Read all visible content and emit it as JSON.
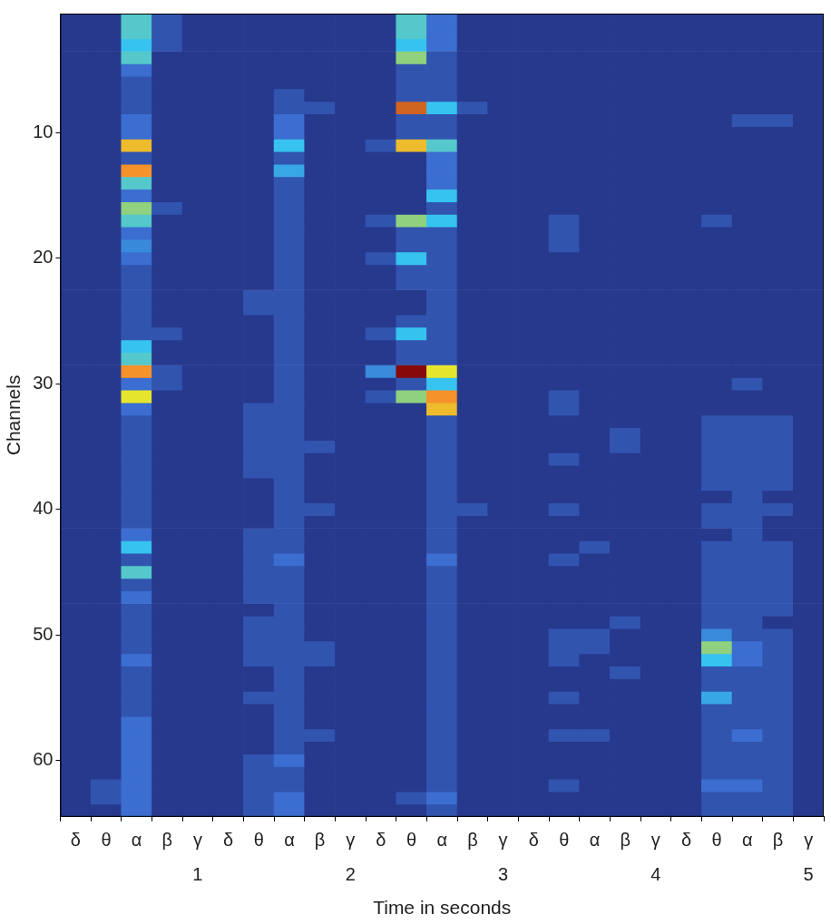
{
  "chart_data": {
    "type": "heatmap",
    "xlabel": "Time in seconds",
    "ylabel": "Channels",
    "categories": [
      "δ",
      "θ",
      "α",
      "β",
      "γ",
      "δ",
      "θ",
      "α",
      "β",
      "γ",
      "δ",
      "θ",
      "α",
      "β",
      "γ",
      "δ",
      "θ",
      "α",
      "β",
      "γ",
      "δ",
      "θ",
      "α",
      "β",
      "γ"
    ],
    "seconds": [
      null,
      null,
      null,
      null,
      1,
      null,
      null,
      null,
      null,
      2,
      null,
      null,
      null,
      null,
      3,
      null,
      null,
      null,
      null,
      4,
      null,
      null,
      null,
      null,
      5
    ],
    "ylim": [
      64.5,
      0.5
    ],
    "yticks": [
      10,
      20,
      30,
      40,
      50,
      60
    ],
    "grid": false,
    "clim": [
      0,
      10
    ],
    "cells": [
      [
        1,
        1,
        5,
        2,
        1,
        1,
        1,
        1,
        1,
        1,
        1,
        5,
        3,
        1,
        1,
        1,
        1,
        1,
        1,
        1,
        1,
        1,
        1,
        1,
        1
      ],
      [
        1,
        1,
        5,
        2,
        1,
        1,
        1,
        1,
        1,
        1,
        1,
        5,
        3,
        1,
        1,
        1,
        1,
        1,
        1,
        1,
        1,
        1,
        1,
        1,
        1
      ],
      [
        1,
        1,
        4.5,
        2,
        1,
        1,
        1,
        1,
        1,
        1,
        1,
        4.5,
        3,
        1,
        1,
        1,
        1,
        1,
        1,
        1,
        1,
        1,
        1,
        1,
        1
      ],
      [
        1,
        1,
        5,
        1,
        1,
        1,
        1,
        1,
        1,
        1,
        1,
        6,
        2,
        1,
        1,
        1,
        1,
        1,
        1,
        1,
        1,
        1,
        1,
        1,
        1
      ],
      [
        1,
        1,
        3,
        1,
        1,
        1,
        1,
        1,
        1,
        1,
        1,
        2,
        2,
        1,
        1,
        1,
        1,
        1,
        1,
        1,
        1,
        1,
        1,
        1,
        1
      ],
      [
        1,
        1,
        2,
        1,
        1,
        1,
        1,
        1,
        1,
        1,
        1,
        2,
        2,
        1,
        1,
        1,
        1,
        1,
        1,
        1,
        1,
        1,
        1,
        1,
        1
      ],
      [
        1,
        1,
        2,
        1,
        1,
        1,
        1,
        2,
        1,
        1,
        1,
        2,
        2,
        1,
        1,
        1,
        1,
        1,
        1,
        1,
        1,
        1,
        1,
        1,
        1
      ],
      [
        1,
        1,
        2,
        1,
        1,
        1,
        1,
        2,
        2,
        1,
        1,
        9,
        4.5,
        2,
        1,
        1,
        1,
        1,
        1,
        1,
        1,
        1,
        1,
        1,
        1
      ],
      [
        1,
        1,
        3,
        1,
        1,
        1,
        1,
        3,
        1,
        1,
        1,
        2,
        2,
        1,
        1,
        1,
        1,
        1,
        1,
        1,
        1,
        1,
        2,
        2,
        1
      ],
      [
        1,
        1,
        3,
        1,
        1,
        1,
        1,
        3,
        1,
        1,
        1,
        2,
        2,
        1,
        1,
        1,
        1,
        1,
        1,
        1,
        1,
        1,
        1,
        1,
        1
      ],
      [
        1,
        1,
        8,
        1,
        1,
        1,
        1,
        4.5,
        1,
        1,
        2,
        8,
        5,
        1,
        1,
        1,
        1,
        1,
        1,
        1,
        1,
        1,
        1,
        1,
        1
      ],
      [
        1,
        1,
        2,
        1,
        1,
        1,
        1,
        2,
        1,
        1,
        1,
        1,
        3,
        1,
        1,
        1,
        1,
        1,
        1,
        1,
        1,
        1,
        1,
        1,
        1
      ],
      [
        1,
        1,
        8.5,
        1,
        1,
        1,
        1,
        4,
        1,
        1,
        1,
        1,
        3,
        1,
        1,
        1,
        1,
        1,
        1,
        1,
        1,
        1,
        1,
        1,
        1
      ],
      [
        1,
        1,
        5,
        1,
        1,
        1,
        1,
        2,
        1,
        1,
        1,
        1,
        3,
        1,
        1,
        1,
        1,
        1,
        1,
        1,
        1,
        1,
        1,
        1,
        1
      ],
      [
        1,
        1,
        3,
        1,
        1,
        1,
        1,
        2,
        1,
        1,
        1,
        1,
        4.5,
        1,
        1,
        1,
        1,
        1,
        1,
        1,
        1,
        1,
        1,
        1,
        1
      ],
      [
        1,
        1,
        6,
        2,
        1,
        1,
        1,
        2,
        1,
        1,
        1,
        1,
        2,
        1,
        1,
        1,
        1,
        1,
        1,
        1,
        1,
        1,
        1,
        1,
        1
      ],
      [
        1,
        1,
        5,
        1,
        1,
        1,
        1,
        2,
        1,
        1,
        2,
        6,
        4.5,
        1,
        1,
        1,
        2,
        1,
        1,
        1,
        1,
        2,
        1,
        1,
        1
      ],
      [
        1,
        1,
        3,
        1,
        1,
        1,
        1,
        2,
        1,
        1,
        1,
        2,
        2,
        1,
        1,
        1,
        2,
        1,
        1,
        1,
        1,
        1,
        1,
        1,
        1
      ],
      [
        1,
        1,
        3.5,
        1,
        1,
        1,
        1,
        2,
        1,
        1,
        1,
        2,
        2,
        1,
        1,
        1,
        2,
        1,
        1,
        1,
        1,
        1,
        1,
        1,
        1
      ],
      [
        1,
        1,
        3,
        1,
        1,
        1,
        1,
        2,
        1,
        1,
        2,
        4.5,
        2,
        1,
        1,
        1,
        1,
        1,
        1,
        1,
        1,
        1,
        1,
        1,
        1
      ],
      [
        1,
        1,
        2,
        1,
        1,
        1,
        1,
        2,
        1,
        1,
        1,
        2,
        2,
        1,
        1,
        1,
        1,
        1,
        1,
        1,
        1,
        1,
        1,
        1,
        1
      ],
      [
        1,
        1,
        2,
        1,
        1,
        1,
        1,
        2,
        1,
        1,
        1,
        2,
        2,
        1,
        1,
        1,
        1,
        1,
        1,
        1,
        1,
        1,
        1,
        1,
        1
      ],
      [
        1,
        1,
        2,
        1,
        1,
        1,
        2,
        2,
        1,
        1,
        1,
        1,
        2,
        1,
        1,
        1,
        1,
        1,
        1,
        1,
        1,
        1,
        1,
        1,
        1
      ],
      [
        1,
        1,
        2,
        1,
        1,
        1,
        2,
        2,
        1,
        1,
        1,
        1,
        2,
        1,
        1,
        1,
        1,
        1,
        1,
        1,
        1,
        1,
        1,
        1,
        1
      ],
      [
        1,
        1,
        2,
        1,
        1,
        1,
        1,
        2,
        1,
        1,
        1,
        2,
        2,
        1,
        1,
        1,
        1,
        1,
        1,
        1,
        1,
        1,
        1,
        1,
        1
      ],
      [
        1,
        1,
        2,
        2,
        1,
        1,
        1,
        2,
        1,
        1,
        2,
        4.5,
        2,
        1,
        1,
        1,
        1,
        1,
        1,
        1,
        1,
        1,
        1,
        1,
        1
      ],
      [
        1,
        1,
        4.5,
        1,
        1,
        1,
        1,
        2,
        1,
        1,
        1,
        2,
        2,
        1,
        1,
        1,
        1,
        1,
        1,
        1,
        1,
        1,
        1,
        1,
        1
      ],
      [
        1,
        1,
        5,
        1,
        1,
        1,
        1,
        2,
        1,
        1,
        1,
        2,
        2,
        1,
        1,
        1,
        1,
        1,
        1,
        1,
        1,
        1,
        1,
        1,
        1
      ],
      [
        1,
        1,
        8.5,
        2,
        1,
        1,
        1,
        2,
        1,
        1,
        3.5,
        10,
        7.5,
        1,
        1,
        1,
        1,
        1,
        1,
        1,
        1,
        1,
        1,
        1,
        1
      ],
      [
        1,
        1,
        3,
        2,
        1,
        1,
        1,
        2,
        1,
        1,
        1,
        2,
        4.5,
        1,
        1,
        1,
        1,
        1,
        1,
        1,
        1,
        1,
        2,
        1,
        1
      ],
      [
        1,
        1,
        7.5,
        1,
        1,
        1,
        1,
        2,
        1,
        1,
        2,
        6,
        8.5,
        1,
        1,
        1,
        2,
        1,
        1,
        1,
        1,
        1,
        1,
        1,
        1
      ],
      [
        1,
        1,
        3,
        1,
        1,
        1,
        2,
        2,
        1,
        1,
        1,
        1,
        8,
        1,
        1,
        1,
        2,
        1,
        1,
        1,
        1,
        1,
        1,
        1,
        1
      ],
      [
        1,
        1,
        2,
        1,
        1,
        1,
        2,
        2,
        1,
        1,
        1,
        1,
        2,
        1,
        1,
        1,
        1,
        1,
        1,
        1,
        1,
        2,
        2,
        2,
        1
      ],
      [
        1,
        1,
        2,
        1,
        1,
        1,
        2,
        2,
        1,
        1,
        1,
        1,
        2,
        1,
        1,
        1,
        1,
        1,
        2,
        1,
        1,
        2,
        2,
        2,
        1
      ],
      [
        1,
        1,
        2,
        1,
        1,
        1,
        2,
        2,
        2,
        1,
        1,
        1,
        2,
        1,
        1,
        1,
        1,
        1,
        2,
        1,
        1,
        2,
        2,
        2,
        1
      ],
      [
        1,
        1,
        2,
        1,
        1,
        1,
        2,
        2,
        1,
        1,
        1,
        1,
        2,
        1,
        1,
        1,
        2,
        1,
        1,
        1,
        1,
        2,
        2,
        2,
        1
      ],
      [
        1,
        1,
        2,
        1,
        1,
        1,
        2,
        2,
        1,
        1,
        1,
        1,
        2,
        1,
        1,
        1,
        1,
        1,
        1,
        1,
        1,
        2,
        2,
        2,
        1
      ],
      [
        1,
        1,
        2,
        1,
        1,
        1,
        1,
        2,
        1,
        1,
        1,
        1,
        2,
        1,
        1,
        1,
        1,
        1,
        1,
        1,
        1,
        2,
        2,
        2,
        1
      ],
      [
        1,
        1,
        2,
        1,
        1,
        1,
        1,
        2,
        1,
        1,
        1,
        1,
        2,
        1,
        1,
        1,
        1,
        1,
        1,
        1,
        1,
        1,
        2,
        1,
        1
      ],
      [
        1,
        1,
        2,
        1,
        1,
        1,
        1,
        2,
        2,
        1,
        1,
        1,
        2,
        2,
        1,
        1,
        2,
        1,
        1,
        1,
        1,
        2,
        2,
        2,
        1
      ],
      [
        1,
        1,
        2,
        1,
        1,
        1,
        1,
        2,
        1,
        1,
        1,
        1,
        2,
        1,
        1,
        1,
        1,
        1,
        1,
        1,
        1,
        2,
        2,
        1,
        1
      ],
      [
        1,
        1,
        3,
        1,
        1,
        1,
        2,
        2,
        1,
        1,
        1,
        1,
        2,
        1,
        1,
        1,
        1,
        1,
        1,
        1,
        1,
        1,
        2,
        1,
        1
      ],
      [
        1,
        1,
        4.5,
        1,
        1,
        1,
        2,
        2,
        1,
        1,
        1,
        1,
        2,
        1,
        1,
        1,
        1,
        2,
        1,
        1,
        1,
        2,
        2,
        2,
        1
      ],
      [
        1,
        1,
        2,
        1,
        1,
        1,
        2,
        3,
        1,
        1,
        1,
        1,
        3,
        1,
        1,
        1,
        2,
        1,
        1,
        1,
        1,
        2,
        2,
        2,
        1
      ],
      [
        1,
        1,
        5,
        1,
        1,
        1,
        2,
        2,
        1,
        1,
        1,
        1,
        2,
        1,
        1,
        1,
        1,
        1,
        1,
        1,
        1,
        2,
        2,
        2,
        1
      ],
      [
        1,
        1,
        2,
        1,
        1,
        1,
        2,
        2,
        1,
        1,
        1,
        1,
        2,
        1,
        1,
        1,
        1,
        1,
        1,
        1,
        1,
        2,
        2,
        2,
        1
      ],
      [
        1,
        1,
        3,
        1,
        1,
        1,
        2,
        2,
        1,
        1,
        1,
        1,
        2,
        1,
        1,
        1,
        1,
        1,
        1,
        1,
        1,
        2,
        2,
        2,
        1
      ],
      [
        1,
        1,
        2,
        1,
        1,
        1,
        1,
        2,
        1,
        1,
        1,
        1,
        2,
        1,
        1,
        1,
        1,
        1,
        1,
        1,
        1,
        2,
        2,
        2,
        1
      ],
      [
        1,
        1,
        2,
        1,
        1,
        1,
        2,
        2,
        1,
        1,
        1,
        1,
        2,
        1,
        1,
        1,
        1,
        1,
        2,
        1,
        1,
        2,
        2,
        1,
        1
      ],
      [
        1,
        1,
        2,
        1,
        1,
        1,
        2,
        2,
        1,
        1,
        1,
        1,
        2,
        1,
        1,
        1,
        2,
        2,
        1,
        1,
        1,
        3.5,
        2,
        2,
        1
      ],
      [
        1,
        1,
        2,
        1,
        1,
        1,
        2,
        2,
        2,
        1,
        1,
        1,
        2,
        1,
        1,
        1,
        2,
        2,
        1,
        1,
        1,
        6,
        3,
        2,
        1
      ],
      [
        1,
        1,
        3,
        1,
        1,
        1,
        2,
        2,
        2,
        1,
        1,
        1,
        2,
        1,
        1,
        1,
        2,
        1,
        1,
        1,
        1,
        4.5,
        3,
        2,
        1
      ],
      [
        1,
        1,
        2,
        1,
        1,
        1,
        1,
        2,
        1,
        1,
        1,
        1,
        2,
        1,
        1,
        1,
        1,
        1,
        2,
        1,
        1,
        2,
        2,
        2,
        1
      ],
      [
        1,
        1,
        2,
        1,
        1,
        1,
        1,
        2,
        1,
        1,
        1,
        1,
        2,
        1,
        1,
        1,
        1,
        1,
        1,
        1,
        1,
        2,
        2,
        2,
        1
      ],
      [
        1,
        1,
        2,
        1,
        1,
        1,
        2,
        2,
        1,
        1,
        1,
        1,
        2,
        1,
        1,
        1,
        2,
        1,
        1,
        1,
        1,
        4,
        2,
        2,
        1
      ],
      [
        1,
        1,
        2,
        1,
        1,
        1,
        1,
        2,
        1,
        1,
        1,
        1,
        2,
        1,
        1,
        1,
        1,
        1,
        1,
        1,
        1,
        2,
        2,
        2,
        1
      ],
      [
        1,
        1,
        3,
        1,
        1,
        1,
        1,
        2,
        1,
        1,
        1,
        1,
        2,
        1,
        1,
        1,
        1,
        1,
        1,
        1,
        1,
        2,
        2,
        2,
        1
      ],
      [
        1,
        1,
        3,
        1,
        1,
        1,
        1,
        2,
        2,
        1,
        1,
        1,
        2,
        1,
        1,
        1,
        2,
        2,
        1,
        1,
        1,
        2,
        3,
        2,
        1
      ],
      [
        1,
        1,
        3,
        1,
        1,
        1,
        1,
        2,
        1,
        1,
        1,
        1,
        2,
        1,
        1,
        1,
        1,
        1,
        1,
        1,
        1,
        2,
        2,
        2,
        1
      ],
      [
        1,
        1,
        3,
        1,
        1,
        1,
        2,
        3,
        1,
        1,
        1,
        1,
        2,
        1,
        1,
        1,
        1,
        1,
        1,
        1,
        1,
        2,
        2,
        2,
        1
      ],
      [
        1,
        1,
        3,
        1,
        1,
        1,
        2,
        2,
        1,
        1,
        1,
        1,
        2,
        1,
        1,
        1,
        1,
        1,
        1,
        1,
        1,
        2,
        2,
        2,
        1
      ],
      [
        1,
        2,
        3,
        1,
        1,
        1,
        2,
        2,
        1,
        1,
        1,
        1,
        2,
        1,
        1,
        1,
        2,
        1,
        1,
        1,
        1,
        3,
        3,
        2,
        1
      ],
      [
        1,
        2,
        3,
        1,
        1,
        1,
        2,
        3,
        1,
        1,
        1,
        2,
        3,
        1,
        1,
        1,
        1,
        1,
        1,
        1,
        1,
        2,
        2,
        2,
        1
      ],
      [
        1,
        1,
        3,
        1,
        1,
        1,
        2,
        3,
        1,
        1,
        1,
        1,
        2,
        1,
        1,
        1,
        1,
        1,
        1,
        1,
        1,
        2,
        2,
        2,
        1
      ]
    ]
  }
}
